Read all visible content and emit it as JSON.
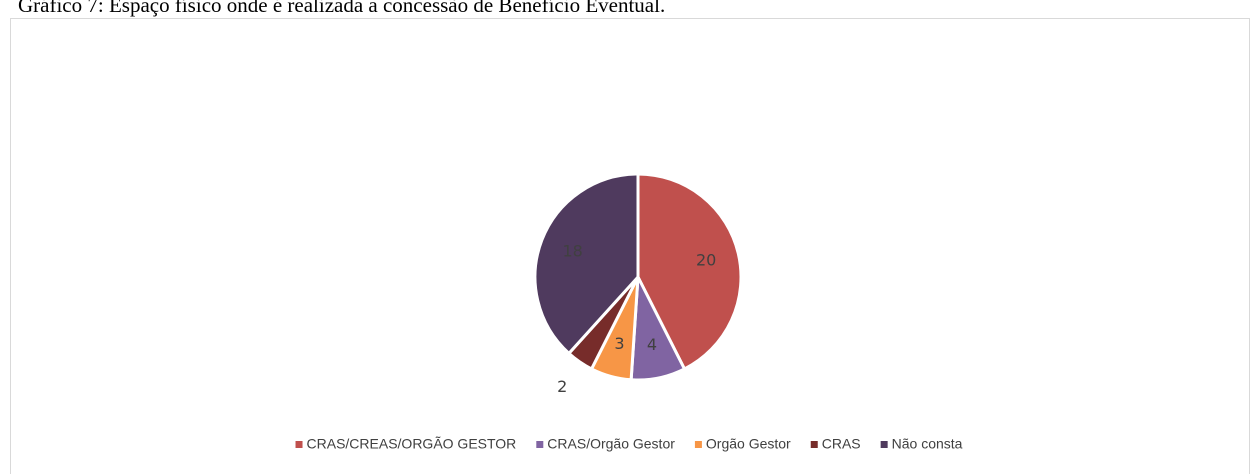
{
  "chart_data": {
    "type": "pie",
    "title": "Gráfico 7: Espaço físico onde é realizada a concessão de Benefício Eventual.",
    "categories": [
      "CRAS/CREAS/ORGÃO GESTOR",
      "CRAS/Orgão Gestor",
      "Orgão Gestor",
      "CRAS",
      "Não consta"
    ],
    "values": [
      20,
      4,
      3,
      2,
      18
    ],
    "colors": [
      "#c0504d",
      "#8064a2",
      "#f79646",
      "#772c2a",
      "#4f3a5e"
    ],
    "legend": "bottom"
  }
}
